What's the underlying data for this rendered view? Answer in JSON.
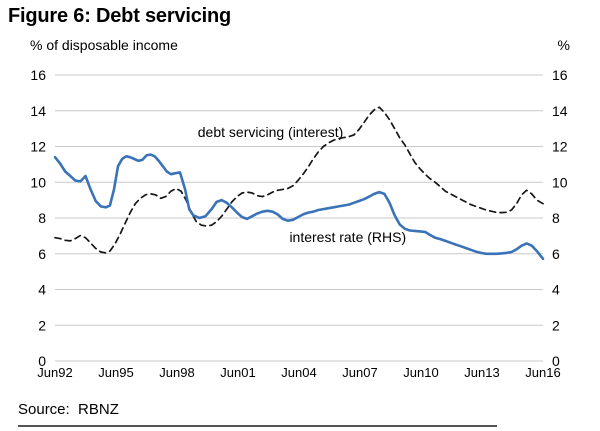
{
  "title": "Figure 6: Debt servicing",
  "source": "Source:  RBNZ",
  "colors": {
    "interest_rate_line": "#3a73b8",
    "debt_servicing_line": "#161616",
    "gridline": "#c9c9c9",
    "footer_rule": "#555555",
    "text": "#000000"
  },
  "chart_data": {
    "type": "line",
    "title": "Figure 6: Debt servicing",
    "left_axis_label": "% of disposable income",
    "right_axis_label": "%",
    "ylim": [
      0,
      16
    ],
    "y_ticks": [
      0,
      2,
      4,
      6,
      8,
      10,
      12,
      14,
      16
    ],
    "grid": true,
    "x_range_years": [
      1992.4,
      2016.4
    ],
    "x_ticks": [
      {
        "year": 1992.4,
        "label": "Jun92"
      },
      {
        "year": 1995.4,
        "label": "Jun95"
      },
      {
        "year": 1998.4,
        "label": "Jun98"
      },
      {
        "year": 2001.4,
        "label": "Jun01"
      },
      {
        "year": 2004.4,
        "label": "Jun04"
      },
      {
        "year": 2007.4,
        "label": "Jun07"
      },
      {
        "year": 2010.4,
        "label": "Jun10"
      },
      {
        "year": 2013.4,
        "label": "Jun13"
      },
      {
        "year": 2016.4,
        "label": "Jun16"
      }
    ],
    "series": [
      {
        "name": "debt servicing (interest)",
        "style": "dashed",
        "color": "#161616",
        "axis": "left",
        "label": {
          "text": "debt servicing (interest)",
          "year": 2003.0,
          "value": 12.82
        },
        "points": [
          [
            1992.4,
            6.9
          ],
          [
            1992.65,
            6.85
          ],
          [
            1992.9,
            6.75
          ],
          [
            1993.15,
            6.72
          ],
          [
            1993.4,
            6.85
          ],
          [
            1993.65,
            7.02
          ],
          [
            1993.9,
            6.9
          ],
          [
            1994.15,
            6.6
          ],
          [
            1994.4,
            6.3
          ],
          [
            1994.65,
            6.1
          ],
          [
            1994.9,
            6.05
          ],
          [
            1995.1,
            6.15
          ],
          [
            1995.35,
            6.55
          ],
          [
            1995.6,
            7.1
          ],
          [
            1995.85,
            7.7
          ],
          [
            1996.1,
            8.3
          ],
          [
            1996.35,
            8.8
          ],
          [
            1996.6,
            9.1
          ],
          [
            1996.85,
            9.3
          ],
          [
            1997.1,
            9.35
          ],
          [
            1997.35,
            9.3
          ],
          [
            1997.6,
            9.1
          ],
          [
            1997.85,
            9.2
          ],
          [
            1998.1,
            9.5
          ],
          [
            1998.35,
            9.65
          ],
          [
            1998.6,
            9.5
          ],
          [
            1998.85,
            9.0
          ],
          [
            1999.1,
            8.3
          ],
          [
            1999.35,
            7.8
          ],
          [
            1999.6,
            7.6
          ],
          [
            1999.85,
            7.55
          ],
          [
            2000.1,
            7.6
          ],
          [
            2000.35,
            7.8
          ],
          [
            2000.6,
            8.1
          ],
          [
            2000.85,
            8.5
          ],
          [
            2001.1,
            8.9
          ],
          [
            2001.35,
            9.2
          ],
          [
            2001.6,
            9.4
          ],
          [
            2001.85,
            9.45
          ],
          [
            2002.1,
            9.4
          ],
          [
            2002.35,
            9.25
          ],
          [
            2002.6,
            9.2
          ],
          [
            2002.85,
            9.3
          ],
          [
            2003.1,
            9.45
          ],
          [
            2003.35,
            9.55
          ],
          [
            2003.6,
            9.6
          ],
          [
            2003.85,
            9.65
          ],
          [
            2004.1,
            9.8
          ],
          [
            2004.35,
            10.1
          ],
          [
            2004.6,
            10.45
          ],
          [
            2004.85,
            10.85
          ],
          [
            2005.1,
            11.3
          ],
          [
            2005.35,
            11.7
          ],
          [
            2005.6,
            12.0
          ],
          [
            2005.85,
            12.2
          ],
          [
            2006.1,
            12.35
          ],
          [
            2006.35,
            12.45
          ],
          [
            2006.6,
            12.5
          ],
          [
            2006.85,
            12.55
          ],
          [
            2007.1,
            12.65
          ],
          [
            2007.35,
            12.95
          ],
          [
            2007.6,
            13.35
          ],
          [
            2007.85,
            13.75
          ],
          [
            2008.1,
            14.05
          ],
          [
            2008.35,
            14.2
          ],
          [
            2008.6,
            13.9
          ],
          [
            2008.85,
            13.5
          ],
          [
            2009.1,
            13.0
          ],
          [
            2009.35,
            12.5
          ],
          [
            2009.6,
            12.1
          ],
          [
            2009.85,
            11.6
          ],
          [
            2010.1,
            11.1
          ],
          [
            2010.35,
            10.75
          ],
          [
            2010.6,
            10.45
          ],
          [
            2010.85,
            10.2
          ],
          [
            2011.1,
            10.0
          ],
          [
            2011.35,
            9.75
          ],
          [
            2011.6,
            9.5
          ],
          [
            2011.85,
            9.35
          ],
          [
            2012.1,
            9.2
          ],
          [
            2012.35,
            9.05
          ],
          [
            2012.6,
            8.9
          ],
          [
            2012.85,
            8.75
          ],
          [
            2013.1,
            8.65
          ],
          [
            2013.35,
            8.55
          ],
          [
            2013.6,
            8.45
          ],
          [
            2013.85,
            8.38
          ],
          [
            2014.1,
            8.32
          ],
          [
            2014.35,
            8.3
          ],
          [
            2014.6,
            8.32
          ],
          [
            2014.85,
            8.45
          ],
          [
            2015.1,
            8.8
          ],
          [
            2015.35,
            9.3
          ],
          [
            2015.6,
            9.55
          ],
          [
            2015.85,
            9.35
          ],
          [
            2016.1,
            9.0
          ],
          [
            2016.4,
            8.8
          ]
        ]
      },
      {
        "name": "interest rate (RHS)",
        "style": "solid",
        "color": "#3a73b8",
        "axis": "right",
        "label": {
          "text": "interest rate (RHS)",
          "year": 2006.8,
          "value": 6.93
        },
        "points": [
          [
            1992.4,
            11.4
          ],
          [
            1992.65,
            11.05
          ],
          [
            1992.9,
            10.6
          ],
          [
            1993.15,
            10.35
          ],
          [
            1993.4,
            10.1
          ],
          [
            1993.65,
            10.05
          ],
          [
            1993.9,
            10.35
          ],
          [
            1994.15,
            9.6
          ],
          [
            1994.4,
            8.95
          ],
          [
            1994.65,
            8.65
          ],
          [
            1994.9,
            8.6
          ],
          [
            1995.1,
            8.7
          ],
          [
            1995.3,
            9.6
          ],
          [
            1995.5,
            10.9
          ],
          [
            1995.7,
            11.3
          ],
          [
            1995.9,
            11.45
          ],
          [
            1996.1,
            11.4
          ],
          [
            1996.3,
            11.3
          ],
          [
            1996.5,
            11.2
          ],
          [
            1996.7,
            11.25
          ],
          [
            1996.9,
            11.5
          ],
          [
            1997.1,
            11.55
          ],
          [
            1997.3,
            11.45
          ],
          [
            1997.5,
            11.2
          ],
          [
            1997.7,
            10.9
          ],
          [
            1997.9,
            10.6
          ],
          [
            1998.1,
            10.45
          ],
          [
            1998.3,
            10.5
          ],
          [
            1998.55,
            10.55
          ],
          [
            1998.8,
            9.6
          ],
          [
            1999.0,
            8.5
          ],
          [
            1999.2,
            8.15
          ],
          [
            1999.5,
            8.0
          ],
          [
            1999.8,
            8.1
          ],
          [
            2000.1,
            8.5
          ],
          [
            2000.35,
            8.9
          ],
          [
            2000.6,
            9.0
          ],
          [
            2000.85,
            8.85
          ],
          [
            2001.1,
            8.6
          ],
          [
            2001.35,
            8.3
          ],
          [
            2001.6,
            8.05
          ],
          [
            2001.85,
            7.95
          ],
          [
            2002.1,
            8.1
          ],
          [
            2002.35,
            8.25
          ],
          [
            2002.6,
            8.35
          ],
          [
            2002.85,
            8.4
          ],
          [
            2003.1,
            8.35
          ],
          [
            2003.35,
            8.2
          ],
          [
            2003.6,
            7.95
          ],
          [
            2003.85,
            7.85
          ],
          [
            2004.1,
            7.9
          ],
          [
            2004.35,
            8.05
          ],
          [
            2004.6,
            8.2
          ],
          [
            2004.85,
            8.3
          ],
          [
            2005.1,
            8.35
          ],
          [
            2005.35,
            8.45
          ],
          [
            2005.6,
            8.5
          ],
          [
            2005.85,
            8.55
          ],
          [
            2006.1,
            8.6
          ],
          [
            2006.35,
            8.65
          ],
          [
            2006.6,
            8.7
          ],
          [
            2006.85,
            8.75
          ],
          [
            2007.1,
            8.85
          ],
          [
            2007.35,
            8.95
          ],
          [
            2007.6,
            9.05
          ],
          [
            2007.85,
            9.2
          ],
          [
            2008.1,
            9.35
          ],
          [
            2008.35,
            9.45
          ],
          [
            2008.6,
            9.35
          ],
          [
            2008.85,
            8.85
          ],
          [
            2009.1,
            8.15
          ],
          [
            2009.35,
            7.65
          ],
          [
            2009.6,
            7.4
          ],
          [
            2009.85,
            7.3
          ],
          [
            2010.1,
            7.28
          ],
          [
            2010.35,
            7.25
          ],
          [
            2010.6,
            7.22
          ],
          [
            2010.85,
            7.05
          ],
          [
            2011.1,
            6.9
          ],
          [
            2011.35,
            6.82
          ],
          [
            2011.6,
            6.72
          ],
          [
            2011.85,
            6.62
          ],
          [
            2012.1,
            6.52
          ],
          [
            2012.35,
            6.42
          ],
          [
            2012.6,
            6.32
          ],
          [
            2012.85,
            6.22
          ],
          [
            2013.1,
            6.12
          ],
          [
            2013.35,
            6.05
          ],
          [
            2013.6,
            6.0
          ],
          [
            2013.85,
            6.0
          ],
          [
            2014.1,
            6.0
          ],
          [
            2014.35,
            6.02
          ],
          [
            2014.6,
            6.05
          ],
          [
            2014.85,
            6.1
          ],
          [
            2015.1,
            6.25
          ],
          [
            2015.35,
            6.45
          ],
          [
            2015.6,
            6.58
          ],
          [
            2015.85,
            6.45
          ],
          [
            2016.1,
            6.15
          ],
          [
            2016.4,
            5.72
          ]
        ]
      }
    ]
  }
}
